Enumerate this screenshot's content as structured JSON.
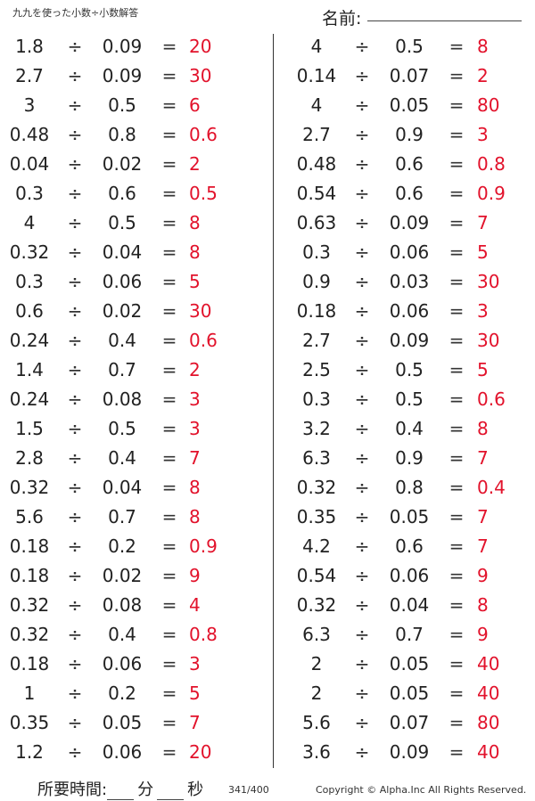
{
  "header": {
    "title": "九九を使った小数÷小数解答",
    "name_label": "名前:"
  },
  "problems_left": [
    {
      "a": "1.8",
      "op": "÷",
      "b": "0.09",
      "eq": "=",
      "ans": "20"
    },
    {
      "a": "2.7",
      "op": "÷",
      "b": "0.09",
      "eq": "=",
      "ans": "30"
    },
    {
      "a": "3",
      "op": "÷",
      "b": "0.5",
      "eq": "=",
      "ans": "6"
    },
    {
      "a": "0.48",
      "op": "÷",
      "b": "0.8",
      "eq": "=",
      "ans": "0.6"
    },
    {
      "a": "0.04",
      "op": "÷",
      "b": "0.02",
      "eq": "=",
      "ans": "2"
    },
    {
      "a": "0.3",
      "op": "÷",
      "b": "0.6",
      "eq": "=",
      "ans": "0.5"
    },
    {
      "a": "4",
      "op": "÷",
      "b": "0.5",
      "eq": "=",
      "ans": "8"
    },
    {
      "a": "0.32",
      "op": "÷",
      "b": "0.04",
      "eq": "=",
      "ans": "8"
    },
    {
      "a": "0.3",
      "op": "÷",
      "b": "0.06",
      "eq": "=",
      "ans": "5"
    },
    {
      "a": "0.6",
      "op": "÷",
      "b": "0.02",
      "eq": "=",
      "ans": "30"
    },
    {
      "a": "0.24",
      "op": "÷",
      "b": "0.4",
      "eq": "=",
      "ans": "0.6"
    },
    {
      "a": "1.4",
      "op": "÷",
      "b": "0.7",
      "eq": "=",
      "ans": "2"
    },
    {
      "a": "0.24",
      "op": "÷",
      "b": "0.08",
      "eq": "=",
      "ans": "3"
    },
    {
      "a": "1.5",
      "op": "÷",
      "b": "0.5",
      "eq": "=",
      "ans": "3"
    },
    {
      "a": "2.8",
      "op": "÷",
      "b": "0.4",
      "eq": "=",
      "ans": "7"
    },
    {
      "a": "0.32",
      "op": "÷",
      "b": "0.04",
      "eq": "=",
      "ans": "8"
    },
    {
      "a": "5.6",
      "op": "÷",
      "b": "0.7",
      "eq": "=",
      "ans": "8"
    },
    {
      "a": "0.18",
      "op": "÷",
      "b": "0.2",
      "eq": "=",
      "ans": "0.9"
    },
    {
      "a": "0.18",
      "op": "÷",
      "b": "0.02",
      "eq": "=",
      "ans": "9"
    },
    {
      "a": "0.32",
      "op": "÷",
      "b": "0.08",
      "eq": "=",
      "ans": "4"
    },
    {
      "a": "0.32",
      "op": "÷",
      "b": "0.4",
      "eq": "=",
      "ans": "0.8"
    },
    {
      "a": "0.18",
      "op": "÷",
      "b": "0.06",
      "eq": "=",
      "ans": "3"
    },
    {
      "a": "1",
      "op": "÷",
      "b": "0.2",
      "eq": "=",
      "ans": "5"
    },
    {
      "a": "0.35",
      "op": "÷",
      "b": "0.05",
      "eq": "=",
      "ans": "7"
    },
    {
      "a": "1.2",
      "op": "÷",
      "b": "0.06",
      "eq": "=",
      "ans": "20"
    }
  ],
  "problems_right": [
    {
      "a": "4",
      "op": "÷",
      "b": "0.5",
      "eq": "=",
      "ans": "8"
    },
    {
      "a": "0.14",
      "op": "÷",
      "b": "0.07",
      "eq": "=",
      "ans": "2"
    },
    {
      "a": "4",
      "op": "÷",
      "b": "0.05",
      "eq": "=",
      "ans": "80"
    },
    {
      "a": "2.7",
      "op": "÷",
      "b": "0.9",
      "eq": "=",
      "ans": "3"
    },
    {
      "a": "0.48",
      "op": "÷",
      "b": "0.6",
      "eq": "=",
      "ans": "0.8"
    },
    {
      "a": "0.54",
      "op": "÷",
      "b": "0.6",
      "eq": "=",
      "ans": "0.9"
    },
    {
      "a": "0.63",
      "op": "÷",
      "b": "0.09",
      "eq": "=",
      "ans": "7"
    },
    {
      "a": "0.3",
      "op": "÷",
      "b": "0.06",
      "eq": "=",
      "ans": "5"
    },
    {
      "a": "0.9",
      "op": "÷",
      "b": "0.03",
      "eq": "=",
      "ans": "30"
    },
    {
      "a": "0.18",
      "op": "÷",
      "b": "0.06",
      "eq": "=",
      "ans": "3"
    },
    {
      "a": "2.7",
      "op": "÷",
      "b": "0.09",
      "eq": "=",
      "ans": "30"
    },
    {
      "a": "2.5",
      "op": "÷",
      "b": "0.5",
      "eq": "=",
      "ans": "5"
    },
    {
      "a": "0.3",
      "op": "÷",
      "b": "0.5",
      "eq": "=",
      "ans": "0.6"
    },
    {
      "a": "3.2",
      "op": "÷",
      "b": "0.4",
      "eq": "=",
      "ans": "8"
    },
    {
      "a": "6.3",
      "op": "÷",
      "b": "0.9",
      "eq": "=",
      "ans": "7"
    },
    {
      "a": "0.32",
      "op": "÷",
      "b": "0.8",
      "eq": "=",
      "ans": "0.4"
    },
    {
      "a": "0.35",
      "op": "÷",
      "b": "0.05",
      "eq": "=",
      "ans": "7"
    },
    {
      "a": "4.2",
      "op": "÷",
      "b": "0.6",
      "eq": "=",
      "ans": "7"
    },
    {
      "a": "0.54",
      "op": "÷",
      "b": "0.06",
      "eq": "=",
      "ans": "9"
    },
    {
      "a": "0.32",
      "op": "÷",
      "b": "0.04",
      "eq": "=",
      "ans": "8"
    },
    {
      "a": "6.3",
      "op": "÷",
      "b": "0.7",
      "eq": "=",
      "ans": "9"
    },
    {
      "a": "2",
      "op": "÷",
      "b": "0.05",
      "eq": "=",
      "ans": "40"
    },
    {
      "a": "2",
      "op": "÷",
      "b": "0.05",
      "eq": "=",
      "ans": "40"
    },
    {
      "a": "5.6",
      "op": "÷",
      "b": "0.07",
      "eq": "=",
      "ans": "80"
    },
    {
      "a": "3.6",
      "op": "÷",
      "b": "0.09",
      "eq": "=",
      "ans": "40"
    }
  ],
  "footer": {
    "time_label": "所要時間:",
    "minutes_unit": "分",
    "seconds_unit": "秒",
    "page_number": "341/400",
    "copyright": "Copyright © Alpha.Inc All Rights Reserved."
  },
  "colors": {
    "answer": "#e2122b",
    "text": "#222222"
  }
}
